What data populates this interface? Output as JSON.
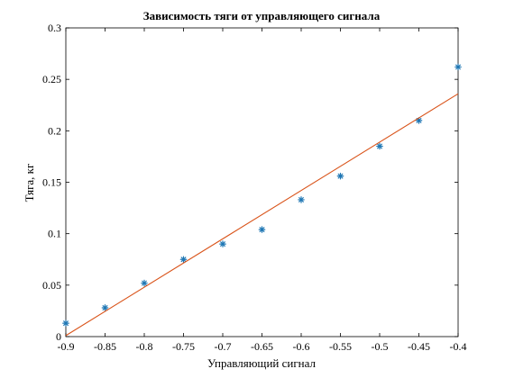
{
  "chart_data": {
    "type": "scatter",
    "title": "Зависимость тяги от управляющего сигнала",
    "xlabel": "Управляющий сигнал",
    "ylabel": "Тяга, кг",
    "xlim": [
      -0.9,
      -0.4
    ],
    "ylim": [
      0,
      0.3
    ],
    "x_ticks": [
      -0.9,
      -0.85,
      -0.8,
      -0.75,
      -0.7,
      -0.65,
      -0.6,
      -0.55,
      -0.5,
      -0.45,
      -0.4
    ],
    "x_tick_labels": [
      "-0.9",
      "-0.85",
      "-0.8",
      "-0.75",
      "-0.7",
      "-0.65",
      "-0.6",
      "-0.55",
      "-0.5",
      "-0.45",
      "-0.4"
    ],
    "y_ticks": [
      0,
      0.05,
      0.1,
      0.15,
      0.2,
      0.25,
      0.3
    ],
    "y_tick_labels": [
      "0",
      "0.05",
      "0.1",
      "0.15",
      "0.2",
      "0.25",
      "0.3"
    ],
    "grid": false,
    "series": [
      {
        "kind": "points",
        "marker": "asterisk",
        "color": "#1f77b4",
        "x": [
          -0.9,
          -0.85,
          -0.8,
          -0.75,
          -0.7,
          -0.65,
          -0.6,
          -0.55,
          -0.5,
          -0.45,
          -0.4
        ],
        "y": [
          0.013,
          0.028,
          0.052,
          0.075,
          0.09,
          0.104,
          0.133,
          0.156,
          0.185,
          0.21,
          0.262
        ]
      },
      {
        "kind": "line",
        "color": "#d95319",
        "x": [
          -0.9,
          -0.4
        ],
        "y": [
          0.001,
          0.236
        ]
      }
    ]
  }
}
